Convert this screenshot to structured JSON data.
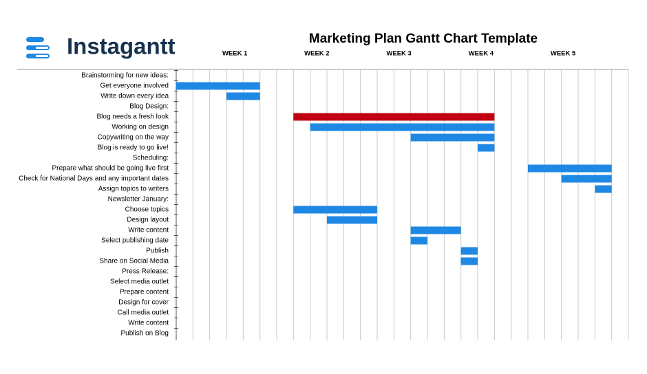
{
  "logo": "Instagantt",
  "chart_data": {
    "type": "gantt",
    "title": "Marketing Plan Gantt Chart Template",
    "xlim": [
      0,
      27
    ],
    "xticks": [
      {
        "value": 3.5,
        "label": "WEEK 1"
      },
      {
        "value": 8.4,
        "label": "WEEK 2"
      },
      {
        "value": 13.3,
        "label": "WEEK 3"
      },
      {
        "value": 18.2,
        "label": "WEEK 4"
      },
      {
        "value": 23.1,
        "label": "WEEK 5"
      }
    ],
    "grid": true,
    "color": "#1f88e5",
    "tasks": [
      {
        "name": "Brainstorming for new ideas:",
        "start": null,
        "end": null
      },
      {
        "name": "Get everyone involved",
        "start": 0,
        "end": 5
      },
      {
        "name": "Write down every idea",
        "start": 3,
        "end": 5
      },
      {
        "name": "Blog Design:",
        "start": null,
        "end": null
      },
      {
        "name": "Blog needs a fresh look",
        "start": 7,
        "end": 19,
        "color": "#c00010"
      },
      {
        "name": "Working on design",
        "start": 8,
        "end": 19
      },
      {
        "name": "Copywriting on the way",
        "start": 14,
        "end": 19
      },
      {
        "name": "Blog is ready to go live!",
        "start": 18,
        "end": 19
      },
      {
        "name": "Scheduling:",
        "start": null,
        "end": null
      },
      {
        "name": "Prepare what should be going live first",
        "start": 21,
        "end": 26
      },
      {
        "name": "Check for National Days and any important dates",
        "start": 23,
        "end": 26
      },
      {
        "name": "Assign topics to writers",
        "start": 25,
        "end": 26
      },
      {
        "name": "Newsletter January:",
        "start": null,
        "end": null
      },
      {
        "name": "Choose topics",
        "start": 7,
        "end": 12
      },
      {
        "name": "Design layout",
        "start": 9,
        "end": 12
      },
      {
        "name": "Write content",
        "start": 14,
        "end": 17
      },
      {
        "name": "Select publishing date",
        "start": 14,
        "end": 15
      },
      {
        "name": "Publish",
        "start": 17,
        "end": 18
      },
      {
        "name": "Share on Social Media",
        "start": 17,
        "end": 18
      },
      {
        "name": "Press Release:",
        "start": null,
        "end": null
      },
      {
        "name": "Select media outlet",
        "start": null,
        "end": null
      },
      {
        "name": "Prepare content",
        "start": null,
        "end": null
      },
      {
        "name": "Design for cover",
        "start": null,
        "end": null
      },
      {
        "name": "Call media outlet",
        "start": null,
        "end": null
      },
      {
        "name": "Write content",
        "start": null,
        "end": null
      },
      {
        "name": "Publish on Blog",
        "start": null,
        "end": null
      }
    ]
  }
}
